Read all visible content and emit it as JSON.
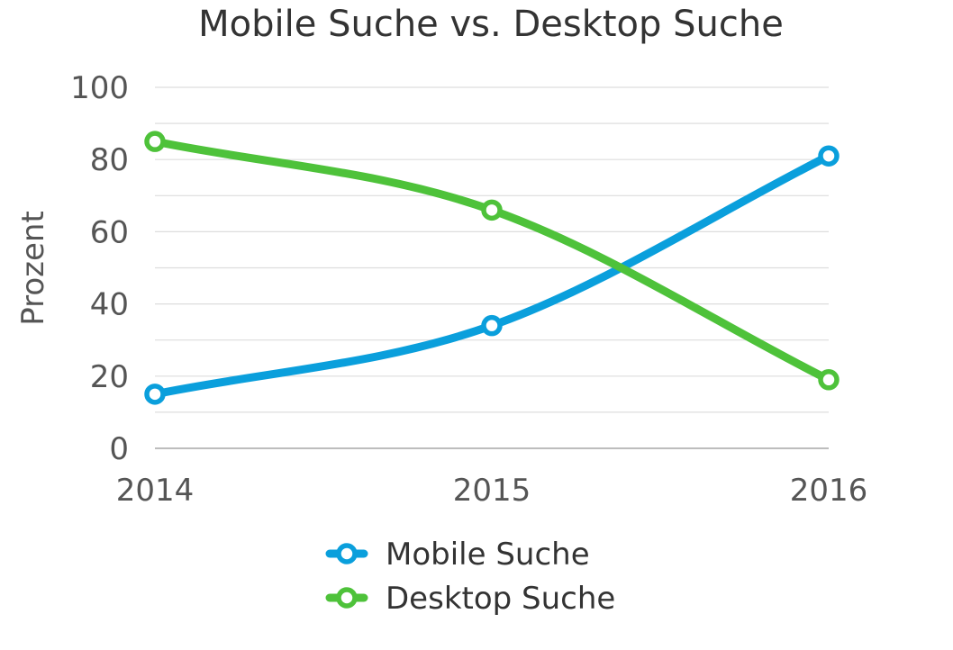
{
  "chart_data": {
    "type": "line",
    "title": "Mobile Suche vs. Desktop Suche",
    "ylabel": "Prozent",
    "xlabel": "",
    "categories": [
      "2014",
      "2015",
      "2016"
    ],
    "yticks": [
      "0",
      "20",
      "40",
      "60",
      "80",
      "100"
    ],
    "ylim": [
      0,
      100
    ],
    "grid": true,
    "legend_position": "bottom",
    "series": [
      {
        "name": "Mobile Suche",
        "values": [
          15,
          34,
          81
        ],
        "color": "#0a9fdc"
      },
      {
        "name": "Desktop Suche",
        "values": [
          85,
          66,
          19
        ],
        "color": "#4ec23a"
      }
    ]
  }
}
